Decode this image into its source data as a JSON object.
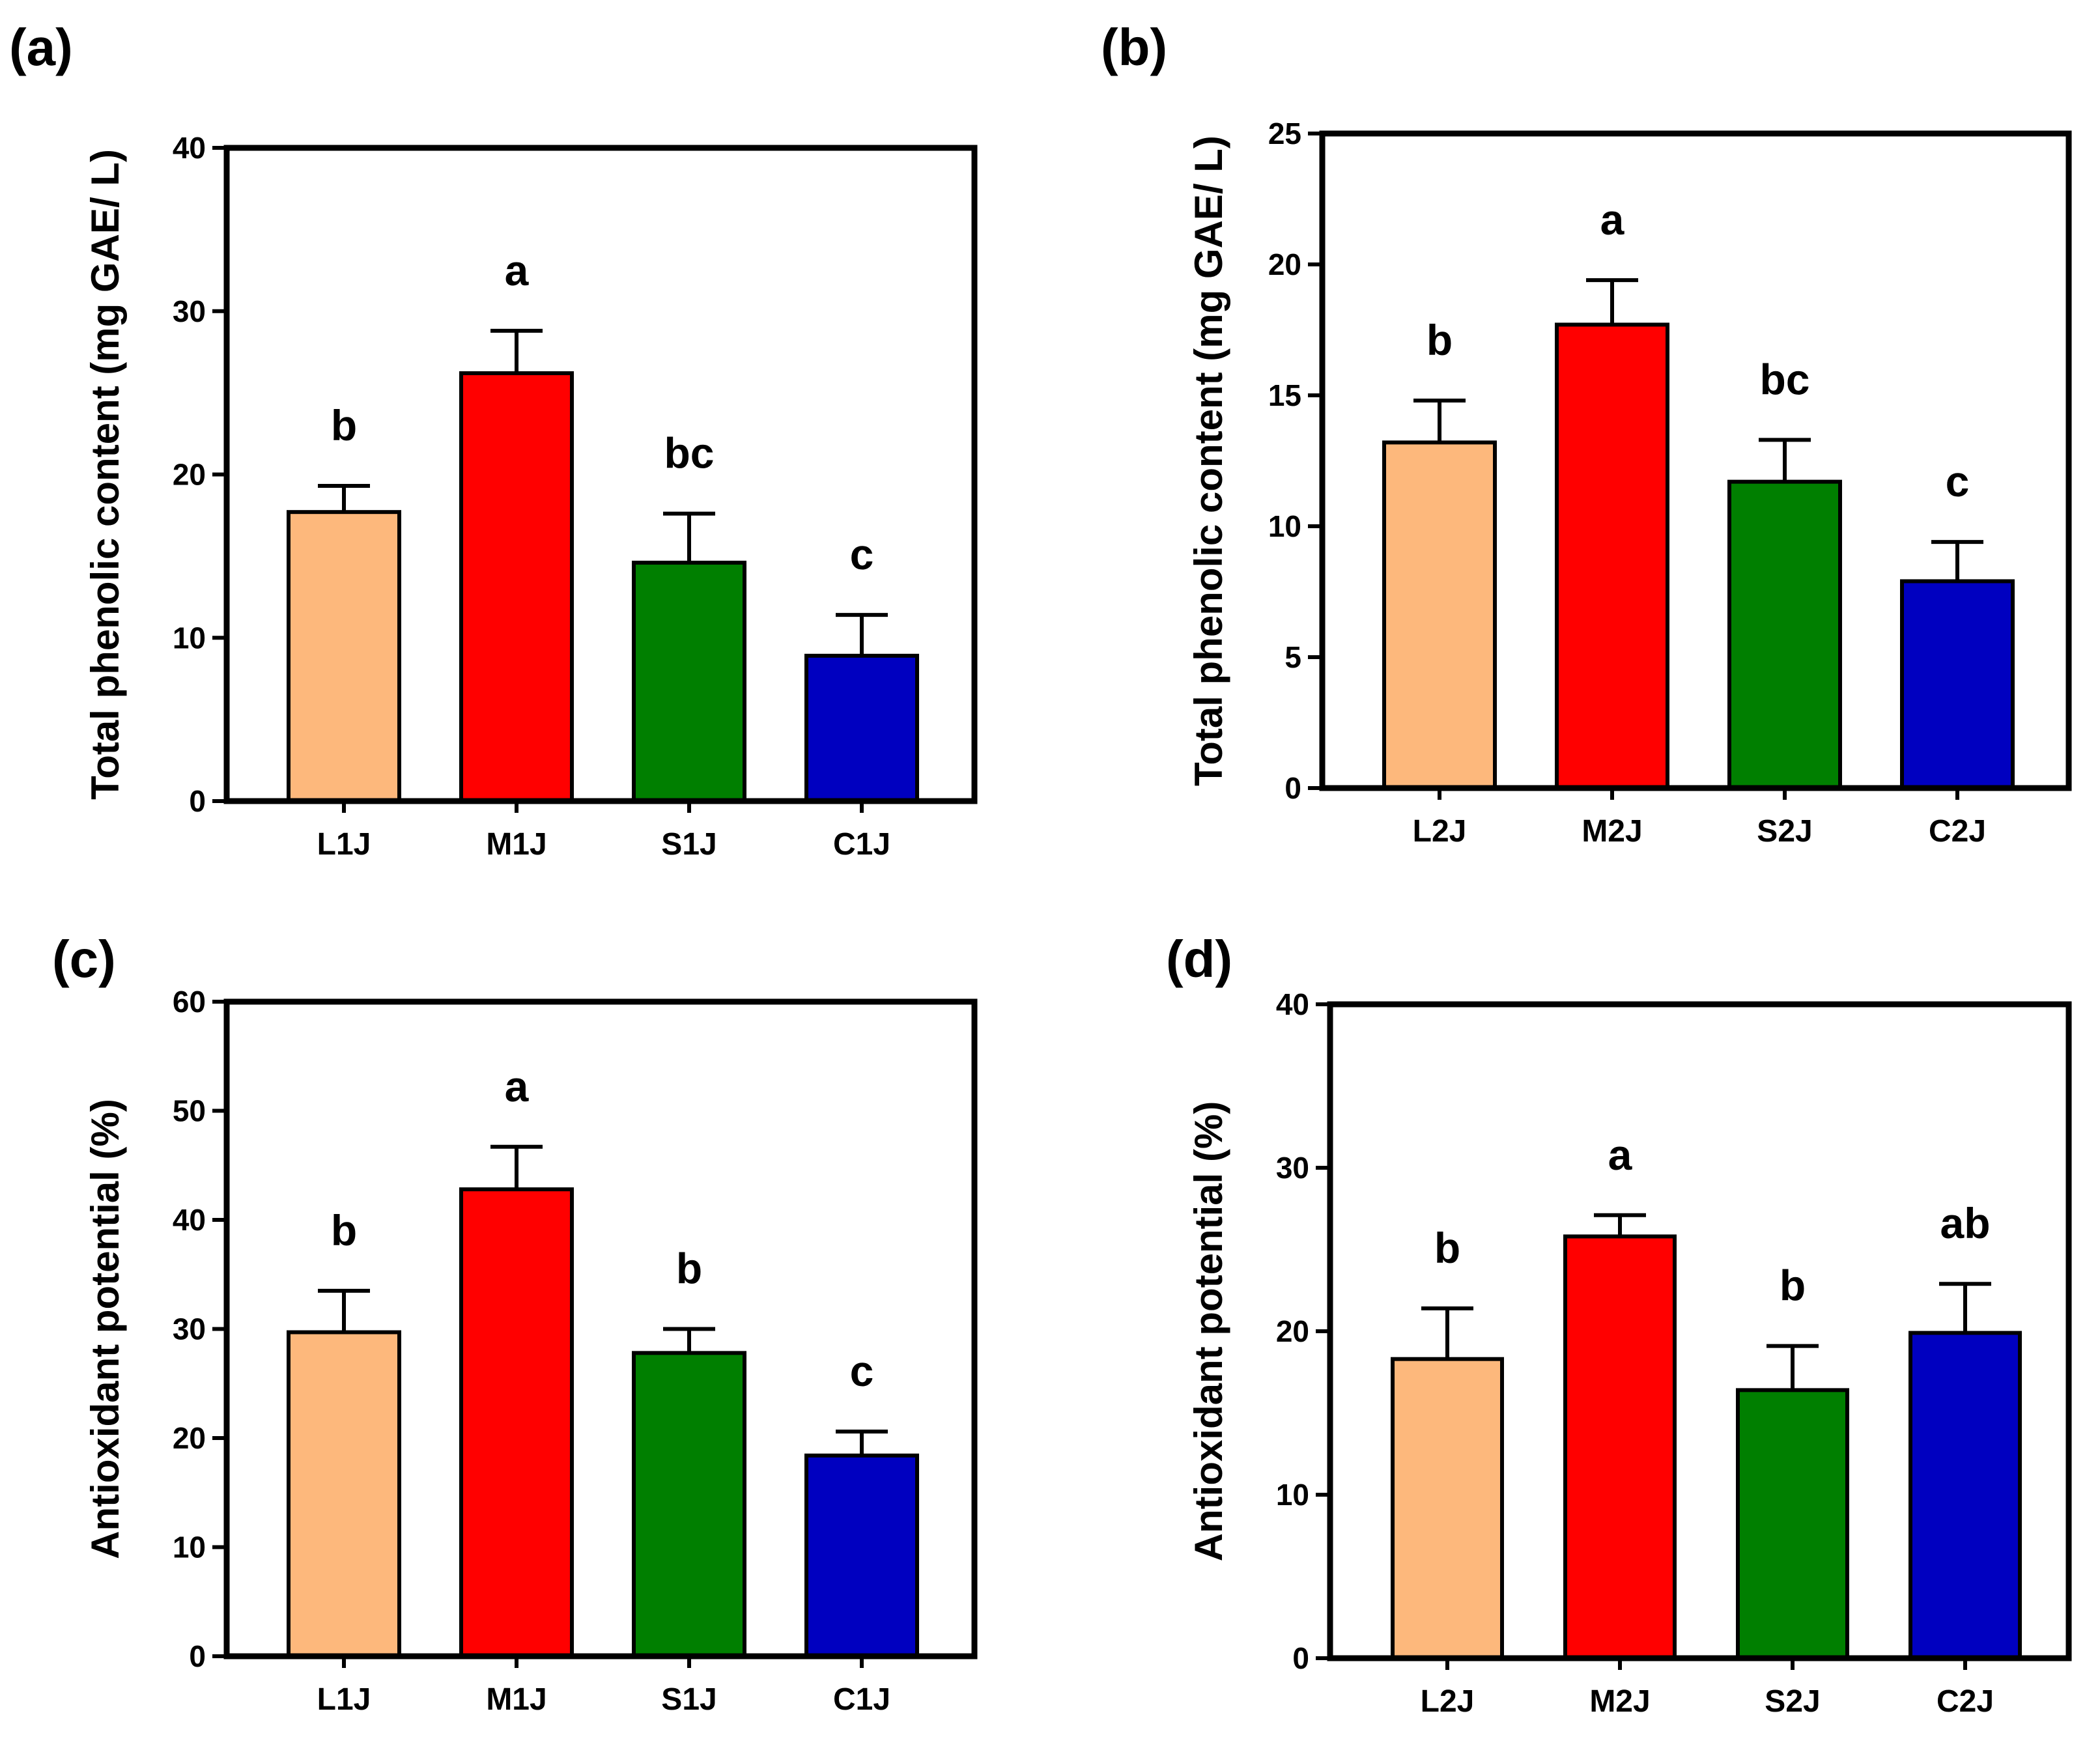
{
  "chart_data": [
    {
      "panel_label": "(a)",
      "type": "bar",
      "ylabel": "Total phenolic content (mg GAE/ L)",
      "xlabel": "",
      "ylim": [
        0,
        40
      ],
      "yticks": [
        "0",
        "10",
        "20",
        "30",
        "40"
      ],
      "categories": [
        "L1J",
        "M1J",
        "S1J",
        "C1J"
      ],
      "values": [
        17.7,
        26.2,
        14.6,
        8.9
      ],
      "errors": [
        1.6,
        2.6,
        3.0,
        2.5
      ],
      "colors": [
        "#FDB87C",
        "#FF0000",
        "#007F00",
        "#0000C0"
      ],
      "significance": [
        "b",
        "a",
        "bc",
        "c"
      ]
    },
    {
      "panel_label": "(b)",
      "type": "bar",
      "ylabel": "Total phenolic content (mg GAE/ L)",
      "xlabel": "",
      "ylim": [
        0,
        25
      ],
      "yticks": [
        "0",
        "5",
        "10",
        "15",
        "20",
        "25"
      ],
      "categories": [
        "L2J",
        "M2J",
        "S2J",
        "C2J"
      ],
      "values": [
        13.2,
        17.7,
        11.7,
        7.9
      ],
      "errors": [
        1.6,
        1.7,
        1.6,
        1.5
      ],
      "colors": [
        "#FDB87C",
        "#FF0000",
        "#007F00",
        "#0000C0"
      ],
      "significance": [
        "b",
        "a",
        "bc",
        "c"
      ]
    },
    {
      "panel_label": "(c)",
      "type": "bar",
      "ylabel": "Antioxidant potential (%)",
      "xlabel": "",
      "ylim": [
        0,
        60
      ],
      "yticks": [
        "0",
        "10",
        "20",
        "30",
        "40",
        "50",
        "60"
      ],
      "categories": [
        "L1J",
        "M1J",
        "S1J",
        "C1J"
      ],
      "values": [
        29.7,
        42.8,
        27.8,
        18.4
      ],
      "errors": [
        3.8,
        3.9,
        2.2,
        2.2
      ],
      "colors": [
        "#FDB87C",
        "#FF0000",
        "#007F00",
        "#0000C0"
      ],
      "significance": [
        "b",
        "a",
        "b",
        "c"
      ]
    },
    {
      "panel_label": "(d)",
      "type": "bar",
      "ylabel": "Antioxidant potential (%)",
      "xlabel": "",
      "ylim": [
        0,
        40
      ],
      "yticks": [
        "0",
        "10",
        "20",
        "30",
        "40"
      ],
      "categories": [
        "L2J",
        "M2J",
        "S2J",
        "C2J"
      ],
      "values": [
        18.3,
        25.8,
        16.4,
        19.9
      ],
      "errors": [
        3.1,
        1.3,
        2.7,
        3.0
      ],
      "colors": [
        "#FDB87C",
        "#FF0000",
        "#007F00",
        "#0000C0"
      ],
      "significance": [
        "b",
        "a",
        "b",
        "ab"
      ]
    }
  ]
}
